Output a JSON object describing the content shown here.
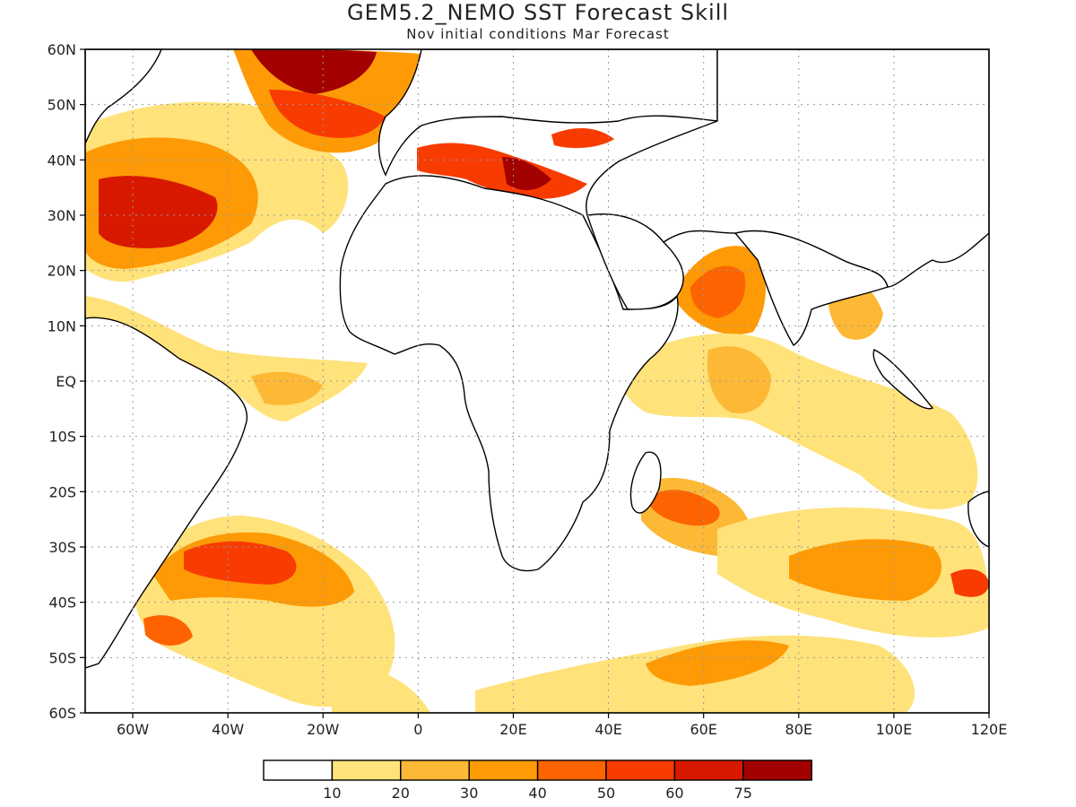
{
  "title": "GEM5.2_NEMO SST Forecast Skill",
  "subtitle": "Nov initial conditions  Mar Forecast",
  "map": {
    "lon_range": [
      -70,
      120
    ],
    "lat_range": [
      -60,
      60
    ],
    "lat_labels": [
      "60N",
      "50N",
      "40N",
      "30N",
      "20N",
      "10N",
      "EQ",
      "10S",
      "20S",
      "30S",
      "40S",
      "50S",
      "60S"
    ],
    "lon_labels": [
      "60W",
      "40W",
      "20W",
      "0",
      "20E",
      "40E",
      "60E",
      "80E",
      "100E",
      "120E"
    ],
    "gridlines": "dotted"
  },
  "colorbar": {
    "colors": [
      "#ffffff",
      "#ffe27a",
      "#fdb935",
      "#fd9a06",
      "#fd6401",
      "#f83b01",
      "#d81900",
      "#a30000"
    ],
    "labels": [
      "10",
      "20",
      "30",
      "40",
      "50",
      "60",
      "75"
    ]
  }
}
